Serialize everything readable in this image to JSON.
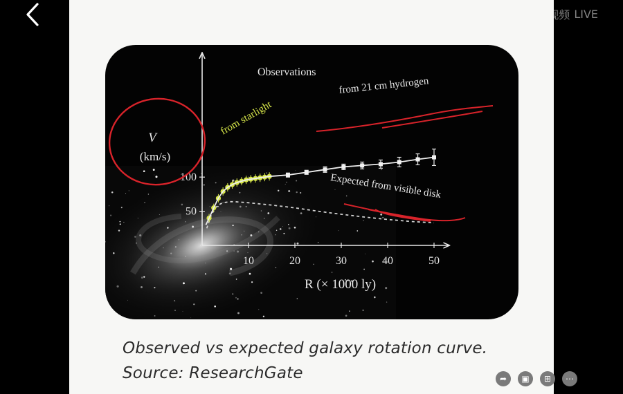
{
  "watermark": {
    "brand": "搜狐视频",
    "live": "LIVE"
  },
  "caption": {
    "line1": "Observed vs expected galaxy rotation curve.",
    "line2": "Source: ResearchGate"
  },
  "chart_data": {
    "type": "line",
    "xlabel": "R (× 1000 ly)",
    "ylabel": "V",
    "ylabel_unit": "(km/s)",
    "xlim": [
      0,
      52
    ],
    "ylim": [
      0,
      140
    ],
    "x_ticks": [
      10,
      20,
      30,
      40,
      50
    ],
    "y_ticks": [
      50,
      100
    ],
    "grid": false,
    "annotations": {
      "observations": "Observations",
      "hydrogen": "from 21 cm hydrogen",
      "starlight": "from starlight",
      "expected": "Expected from visible disk"
    },
    "series": [
      {
        "name": "from starlight",
        "color": "#d8e84a",
        "x": [
          1.5,
          2.5,
          3.5,
          4.5,
          5.5,
          6.5,
          7.5,
          8.5,
          9.5,
          10.5,
          11.5,
          12.5,
          13.5,
          14.5
        ],
        "y": [
          40,
          55,
          69,
          79,
          85,
          89,
          92,
          94,
          96,
          97,
          98,
          99,
          100,
          101
        ]
      },
      {
        "name": "from 21 cm hydrogen",
        "color": "#ffffff",
        "x": [
          18.5,
          22.5,
          26.5,
          30.5,
          34.5,
          38.5,
          42.5,
          46.5,
          50
        ],
        "y": [
          103,
          107,
          111,
          115,
          117,
          119,
          122,
          126,
          129
        ],
        "err": [
          3,
          3,
          4,
          4,
          5,
          6,
          7,
          8,
          12
        ]
      },
      {
        "name": "Expected from visible disk",
        "style": "dashed",
        "color": "#d0d0d0",
        "x": [
          1,
          2,
          3,
          4,
          5,
          6,
          7,
          8,
          10,
          12,
          15,
          20,
          25,
          30,
          35,
          40,
          45,
          50
        ],
        "y": [
          25,
          45,
          56,
          61,
          63,
          64,
          64,
          63.5,
          62.5,
          61,
          59,
          55,
          50,
          45.5,
          41.5,
          38,
          35,
          33
        ]
      }
    ]
  }
}
